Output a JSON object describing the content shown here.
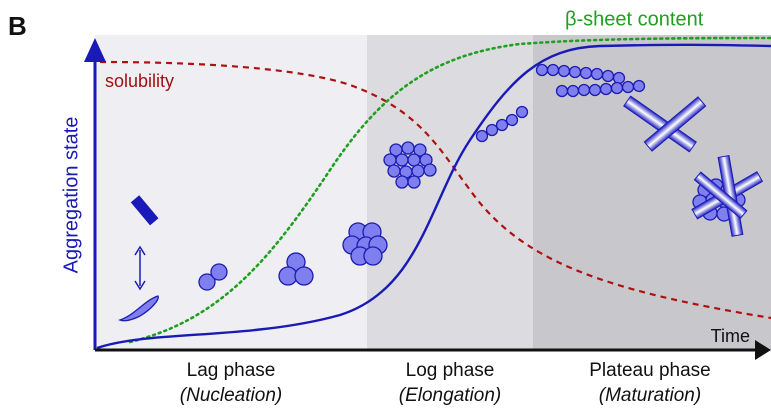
{
  "panel_label": "B",
  "y_axis_label": "Aggregation state",
  "x_axis_label": "Time",
  "curves": {
    "beta_sheet": "β-sheet content",
    "solubility": "solubility"
  },
  "phases": [
    {
      "name": "Lag phase",
      "subtitle": "(Nucleation)"
    },
    {
      "name": "Log phase",
      "subtitle": "(Elongation)"
    },
    {
      "name": "Plateau phase",
      "subtitle": "(Maturation)"
    }
  ]
}
